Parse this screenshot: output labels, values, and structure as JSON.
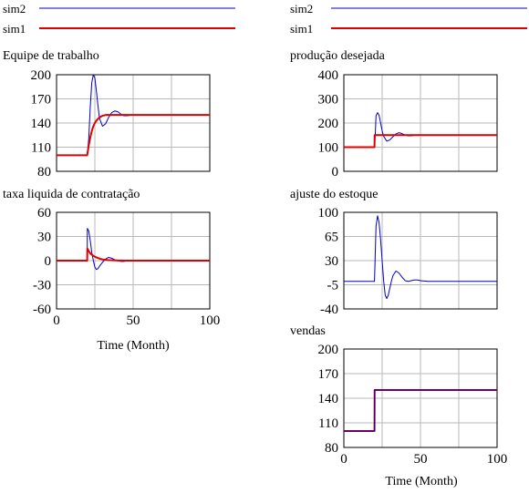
{
  "legend": {
    "items": [
      {
        "name": "sim2",
        "color": "#0000cc"
      },
      {
        "name": "sim1",
        "color": "#dd0000"
      }
    ]
  },
  "chart_data": [
    {
      "type": "line",
      "title": "Equipe de trabalho",
      "xlabel": "",
      "xlim": [
        0,
        100
      ],
      "ylim": [
        80,
        200
      ],
      "yticks": [
        80,
        110,
        140,
        170,
        200
      ],
      "xticks": [],
      "series": [
        {
          "name": "sim2",
          "color": "#0000cc",
          "x": [
            0,
            20,
            21,
            22,
            23,
            24,
            25,
            26,
            27,
            28,
            30,
            32,
            34,
            36,
            38,
            40,
            42,
            44,
            46,
            50,
            55,
            60,
            100
          ],
          "y": [
            100,
            100,
            120,
            160,
            190,
            200,
            196,
            180,
            162,
            146,
            136,
            139,
            147,
            153,
            155,
            154,
            151,
            149,
            149,
            150,
            150,
            150,
            150
          ]
        },
        {
          "name": "sim1",
          "color": "#dd0000",
          "x": [
            0,
            20,
            21,
            22,
            23,
            24,
            25,
            26,
            28,
            30,
            32,
            35,
            40,
            100
          ],
          "y": [
            100,
            100,
            112,
            122,
            130,
            136,
            140,
            143,
            147,
            149,
            150,
            150,
            150,
            150
          ]
        }
      ]
    },
    {
      "type": "line",
      "title": "produção desejada",
      "xlabel": "",
      "xlim": [
        0,
        100
      ],
      "ylim": [
        0,
        400
      ],
      "yticks": [
        0,
        100,
        200,
        300,
        400
      ],
      "xticks": [],
      "series": [
        {
          "name": "sim2",
          "color": "#0000cc",
          "x": [
            0,
            20,
            20.5,
            21,
            22,
            23,
            24,
            25,
            26,
            28,
            30,
            32,
            34,
            36,
            38,
            40,
            42,
            44,
            46,
            48,
            50,
            55,
            100
          ],
          "y": [
            100,
            100,
            150,
            230,
            243,
            232,
            200,
            168,
            145,
            125,
            130,
            143,
            155,
            160,
            156,
            150,
            147,
            147,
            149,
            150,
            151,
            150,
            150
          ]
        },
        {
          "name": "sim1",
          "color": "#dd0000",
          "x": [
            0,
            20,
            20.1,
            100
          ],
          "y": [
            100,
            100,
            150,
            150
          ]
        }
      ]
    },
    {
      "type": "line",
      "title": "taxa liquida de contratação",
      "xlabel": "",
      "xlim": [
        0,
        100
      ],
      "ylim": [
        -60,
        60
      ],
      "yticks": [
        -60,
        -30,
        0,
        30,
        60
      ],
      "xticks": [
        0,
        50,
        100
      ],
      "series": [
        {
          "name": "sim2",
          "color": "#0000cc",
          "x": [
            0,
            20,
            20.1,
            21,
            22,
            23,
            24,
            25,
            26,
            27,
            28,
            30,
            32,
            34,
            36,
            38,
            40,
            42,
            44,
            46,
            50,
            55,
            100
          ],
          "y": [
            0,
            0,
            40,
            37,
            25,
            10,
            0,
            -8,
            -11,
            -10,
            -7,
            -2,
            2,
            4,
            3,
            1,
            0,
            -1,
            -1,
            0,
            0,
            0,
            0
          ]
        },
        {
          "name": "sim1",
          "color": "#dd0000",
          "x": [
            0,
            20,
            20.1,
            21,
            22,
            24,
            26,
            28,
            30,
            32,
            35,
            40,
            45,
            100
          ],
          "y": [
            0,
            0,
            15,
            12,
            9,
            6,
            4,
            2.5,
            1.5,
            1,
            0.5,
            0.2,
            0,
            0
          ]
        }
      ]
    },
    {
      "type": "line",
      "title": "ajuste do estoque",
      "xlabel": "",
      "xlim": [
        0,
        100
      ],
      "ylim": [
        -40,
        100
      ],
      "yticks": [
        -40,
        -5,
        30,
        65,
        100
      ],
      "xticks": [],
      "series": [
        {
          "name": "sim2",
          "color": "#0000cc",
          "x": [
            0,
            20,
            20.5,
            21,
            22,
            23,
            24,
            25,
            26,
            27,
            28,
            29,
            30,
            31,
            32,
            34,
            36,
            38,
            40,
            42,
            44,
            46,
            48,
            50,
            55,
            60,
            100
          ],
          "y": [
            0,
            0,
            40,
            80,
            95,
            85,
            60,
            30,
            0,
            -20,
            -25,
            -20,
            -10,
            0,
            8,
            15,
            12,
            6,
            1,
            0,
            1,
            2,
            2,
            1,
            0,
            0,
            0
          ]
        }
      ]
    },
    {
      "type": "line",
      "title": "vendas",
      "xlabel": "Time (Month)",
      "xlim": [
        0,
        100
      ],
      "ylim": [
        80,
        200
      ],
      "yticks": [
        80,
        110,
        140,
        170,
        200
      ],
      "xticks": [
        0,
        50,
        100
      ],
      "series": [
        {
          "name": "sim1",
          "color": "#dd0000",
          "x": [
            0,
            20,
            20.1,
            100
          ],
          "y": [
            100,
            100,
            150,
            150
          ]
        },
        {
          "name": "sim2",
          "color": "#0000cc",
          "x": [
            0,
            20,
            20.1,
            100
          ],
          "y": [
            100,
            100,
            150,
            150
          ]
        }
      ]
    }
  ],
  "left_xlabel": "Time (Month)"
}
